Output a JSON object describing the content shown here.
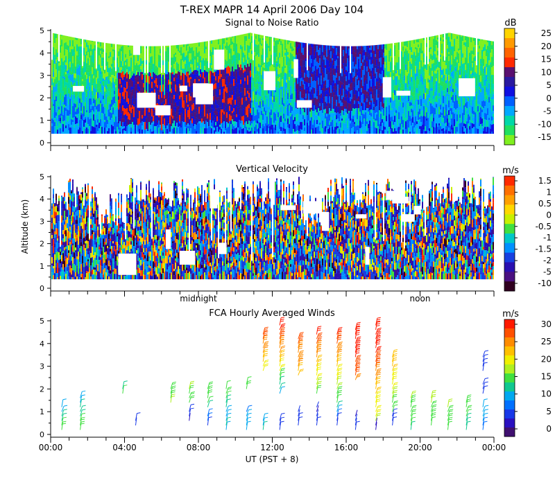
{
  "title": "T-REX  MAPR 14 April 2006 Day 104",
  "x_axis": {
    "label": "UT  (PST + 8)",
    "range_hours": [
      0,
      24
    ],
    "ticks": [
      {
        "h": 0,
        "label": "00:00"
      },
      {
        "h": 4,
        "label": "04:00"
      },
      {
        "h": 8,
        "label": "08:00"
      },
      {
        "h": 12,
        "label": "12:00"
      },
      {
        "h": 16,
        "label": "16:00"
      },
      {
        "h": 20,
        "label": "20:00"
      },
      {
        "h": 24,
        "label": "00:00"
      }
    ],
    "local_markers": [
      {
        "h": 8,
        "label": "midnight"
      },
      {
        "h": 20,
        "label": "noon"
      }
    ]
  },
  "y_axis": {
    "label": "Altitude (km)",
    "range_km": [
      0,
      5
    ],
    "ticks": [
      "0",
      "1",
      "2",
      "3",
      "4",
      "5"
    ]
  },
  "chart_data": [
    {
      "type": "heatmap",
      "title": "Signal to Noise Ratio",
      "units": "dB",
      "colorbar_labels": [
        "25",
        "20",
        "15",
        "10",
        "5",
        "0",
        "-5",
        "-10",
        "-15"
      ],
      "colorbar_colors": [
        "#ffd400",
        "#ff9a00",
        "#ff6400",
        "#ff2a00",
        "#5a1070",
        "#2a1aa0",
        "#1010e0",
        "#0060ff",
        "#00a8ff",
        "#00d8a8",
        "#20e060",
        "#80f020"
      ],
      "x_hours": [
        0,
        24
      ],
      "y_km": [
        0.4,
        5.0
      ]
    },
    {
      "type": "heatmap",
      "title": "Vertical Velocity",
      "units": "m/s",
      "colorbar_labels": [
        "1.5",
        "1",
        "0.5",
        "0",
        "-0.5",
        "-1",
        "-1.5",
        "-2",
        "-5",
        "-10"
      ],
      "colorbar_colors": [
        "#ff2a00",
        "#ff7000",
        "#ffa000",
        "#ffd800",
        "#c8f000",
        "#40e040",
        "#00c8c8",
        "#0090ff",
        "#1840e0",
        "#2a10b0",
        "#4a1080",
        "#300020"
      ],
      "x_hours": [
        0,
        24
      ],
      "y_km": [
        0.4,
        5.0
      ]
    },
    {
      "type": "scatter",
      "title": "FCA Hourly Averaged Winds",
      "units": "m/s",
      "colorbar_labels": [
        "30",
        "25",
        "20",
        "15",
        "10",
        "5",
        "0"
      ],
      "colorbar_colors": [
        "#ff1a00",
        "#ff5000",
        "#ff8c00",
        "#ffc000",
        "#f0f000",
        "#b0f020",
        "#40e040",
        "#10c890",
        "#00a8f0",
        "#0070ff",
        "#1838e8",
        "#2a10c0",
        "#401070"
      ],
      "profiles": [
        {
          "hour": 0.6,
          "altitudes_km": [
            0.2,
            0.4,
            0.6,
            0.8,
            1.0,
            1.2
          ],
          "speeds_ms": [
            15,
            14,
            13,
            12,
            11,
            10
          ]
        },
        {
          "hour": 1.6,
          "altitudes_km": [
            0.2,
            0.4,
            0.6,
            0.8,
            1.0,
            1.2,
            1.4,
            1.6
          ],
          "speeds_ms": [
            16,
            15,
            14,
            13,
            13,
            12,
            11,
            11
          ]
        },
        {
          "hour": 3.9,
          "altitudes_km": [
            1.8,
            2.0
          ],
          "speeds_ms": [
            14,
            13
          ]
        },
        {
          "hour": 4.6,
          "altitudes_km": [
            0.4,
            0.6
          ],
          "speeds_ms": [
            4,
            5
          ]
        },
        {
          "hour": 6.5,
          "altitudes_km": [
            1.4,
            1.6,
            1.8,
            2.0
          ],
          "speeds_ms": [
            17,
            16,
            16,
            15
          ]
        },
        {
          "hour": 7.5,
          "altitudes_km": [
            0.6,
            0.8,
            1.0,
            1.4,
            1.6,
            1.8,
            2.0
          ],
          "speeds_ms": [
            3,
            5,
            6,
            15,
            16,
            16,
            17
          ]
        },
        {
          "hour": 8.5,
          "altitudes_km": [
            0.4,
            0.6,
            0.8,
            1.2,
            1.4,
            1.6,
            1.8,
            2.0
          ],
          "speeds_ms": [
            6,
            7,
            8,
            13,
            14,
            15,
            16,
            16
          ]
        },
        {
          "hour": 9.5,
          "altitudes_km": [
            0.2,
            0.4,
            0.6,
            0.8,
            1.0,
            1.2,
            1.4,
            1.6,
            1.8,
            2.0
          ],
          "speeds_ms": [
            11,
            12,
            11,
            10,
            11,
            12,
            13,
            14,
            15,
            14
          ]
        },
        {
          "hour": 10.6,
          "altitudes_km": [
            0.2,
            0.4,
            0.6,
            0.8,
            1.0,
            2.0,
            2.2
          ],
          "speeds_ms": [
            10,
            10,
            9,
            9,
            8,
            15,
            14
          ]
        },
        {
          "hour": 11.5,
          "altitudes_km": [
            0.2,
            0.4,
            0.6,
            2.8,
            3.0,
            3.2,
            3.4,
            3.6,
            3.8,
            4.0,
            4.2,
            4.4
          ],
          "speeds_ms": [
            12,
            11,
            10,
            20,
            21,
            22,
            23,
            24,
            25,
            26,
            27,
            28
          ]
        },
        {
          "hour": 12.4,
          "altitudes_km": [
            0.2,
            0.4,
            0.6,
            1.8,
            2.0,
            2.2,
            2.4,
            2.6,
            2.8,
            3.0,
            3.2,
            3.4,
            3.6,
            3.8,
            4.0,
            4.2,
            4.4,
            4.6,
            4.8
          ],
          "speeds_ms": [
            6,
            6,
            5,
            10,
            12,
            13,
            14,
            15,
            20,
            21,
            22,
            23,
            24,
            25,
            26,
            27,
            28,
            29,
            30
          ]
        },
        {
          "hour": 13.4,
          "altitudes_km": [
            0.4,
            0.6,
            0.8,
            1.0,
            2.6,
            2.8,
            3.0,
            3.2,
            3.4,
            3.6,
            3.8,
            4.0,
            4.2
          ],
          "speeds_ms": [
            6,
            5,
            4,
            4,
            22,
            23,
            24,
            25,
            25,
            26,
            26,
            27,
            27
          ]
        },
        {
          "hour": 14.4,
          "altitudes_km": [
            0.4,
            0.6,
            0.8,
            1.0,
            1.2,
            1.8,
            2.0,
            2.2,
            2.4,
            2.6,
            2.8,
            3.0,
            3.2,
            3.4,
            3.6,
            3.8,
            4.0,
            4.2,
            4.4
          ],
          "speeds_ms": [
            5,
            4,
            4,
            3,
            4,
            16,
            17,
            18,
            19,
            20,
            21,
            22,
            23,
            24,
            25,
            26,
            27,
            28,
            29
          ]
        },
        {
          "hour": 15.5,
          "altitudes_km": [
            0.4,
            0.6,
            0.8,
            1.0,
            1.2,
            1.4,
            1.6,
            1.8,
            2.0,
            2.2,
            2.4,
            2.6,
            2.8,
            3.0,
            3.2,
            3.4,
            3.6,
            3.8,
            4.0,
            4.2,
            4.4
          ],
          "speeds_ms": [
            4,
            5,
            8,
            10,
            12,
            14,
            15,
            16,
            17,
            18,
            19,
            20,
            21,
            22,
            23,
            24,
            25,
            26,
            27,
            28,
            29
          ]
        },
        {
          "hour": 16.5,
          "altitudes_km": [
            0.2,
            0.4,
            0.6,
            0.8,
            2.4,
            2.6,
            2.8,
            3.0,
            3.2,
            3.4,
            3.6,
            3.8,
            4.0,
            4.2,
            4.4,
            4.6
          ],
          "speeds_ms": [
            5,
            4,
            4,
            3,
            26,
            27,
            27,
            28,
            28,
            29,
            29,
            30,
            30,
            30,
            30,
            30
          ]
        },
        {
          "hour": 17.6,
          "altitudes_km": [
            0.2,
            0.4,
            0.6,
            0.8,
            1.0,
            1.2,
            1.4,
            1.6,
            1.8,
            2.0,
            2.2,
            2.4,
            2.6,
            2.8,
            3.0,
            3.2,
            3.4,
            3.6,
            3.8,
            4.0,
            4.2,
            4.4,
            4.6,
            4.8
          ],
          "speeds_ms": [
            2,
            3,
            18,
            19,
            20,
            20,
            21,
            21,
            22,
            22,
            23,
            24,
            25,
            26,
            27,
            28,
            28,
            29,
            29,
            30,
            30,
            30,
            30,
            30
          ]
        },
        {
          "hour": 18.5,
          "altitudes_km": [
            0.4,
            0.6,
            0.8,
            1.0,
            1.2,
            1.4,
            1.6,
            1.8,
            2.0,
            2.2,
            2.4,
            2.6,
            2.8,
            3.0,
            3.2,
            3.4
          ],
          "speeds_ms": [
            6,
            5,
            5,
            14,
            15,
            16,
            17,
            18,
            19,
            20,
            21,
            21,
            22,
            22,
            23,
            23
          ]
        },
        {
          "hour": 19.5,
          "altitudes_km": [
            0.2,
            0.4,
            0.6,
            0.8,
            1.0,
            1.2,
            1.4,
            1.6
          ],
          "speeds_ms": [
            13,
            14,
            14,
            15,
            15,
            16,
            16,
            17
          ]
        },
        {
          "hour": 20.6,
          "altitudes_km": [
            0.4,
            0.6,
            0.8,
            1.0,
            1.2,
            1.4,
            1.6
          ],
          "speeds_ms": [
            14,
            15,
            15,
            16,
            16,
            17,
            17
          ]
        },
        {
          "hour": 21.5,
          "altitudes_km": [
            0.2,
            0.4,
            0.6,
            0.8,
            1.0,
            1.2
          ],
          "speeds_ms": [
            14,
            15,
            15,
            16,
            16,
            17
          ]
        },
        {
          "hour": 22.5,
          "altitudes_km": [
            0.2,
            0.4,
            0.6,
            0.8,
            1.0,
            1.2,
            1.4
          ],
          "speeds_ms": [
            12,
            13,
            13,
            14,
            15,
            16,
            16
          ]
        },
        {
          "hour": 23.4,
          "altitudes_km": [
            0.2,
            0.4,
            0.6,
            0.8,
            1.0,
            1.2,
            1.8,
            2.0,
            2.2,
            2.8,
            3.0,
            3.2,
            3.4
          ],
          "speeds_ms": [
            8,
            8,
            9,
            9,
            10,
            10,
            5,
            5,
            6,
            6,
            5,
            5,
            6
          ]
        }
      ]
    }
  ]
}
